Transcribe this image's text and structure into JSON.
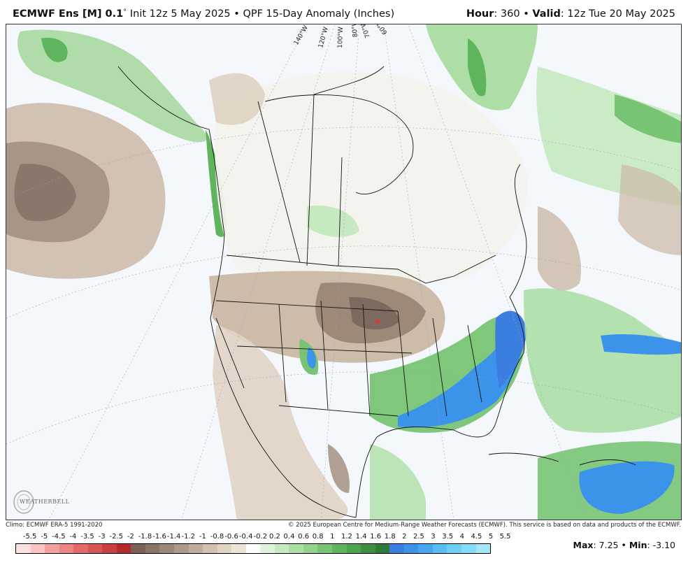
{
  "header": {
    "model": "ECMWF Ens [M] 0.1",
    "degree": "°",
    "init": "Init 12z 5 May 2025",
    "separator": "•",
    "product": "QPF 15-Day Anomaly (Inches)",
    "hour_label": "Hour",
    "hour_value": ": 360",
    "valid_label": "Valid",
    "valid_value": ": 12z Tue 20 May 2025"
  },
  "map": {
    "lon_labels": [
      "140°W",
      "120°W",
      "100°W",
      "80°W",
      "70°W",
      "60°W"
    ]
  },
  "logo": {
    "text": "WEATHERBELL"
  },
  "footer": {
    "climo": "Climo: ECMWF ERA-5 1991-2020",
    "copyright": "© 2025 European Centre for Medium-Range Weather Forecasts (ECMWF). This service is based on data and products of the ECMWF."
  },
  "colorbar": {
    "labels": [
      "-5.5",
      "-5",
      "-4.5",
      "-4",
      "-3.5",
      "-3",
      "-2.5",
      "-2",
      "-1.8",
      "-1.6",
      "-1.4",
      "-1.2",
      "-1",
      "-0.8",
      "-0.6",
      "-0.4",
      "-0.2",
      "0.2",
      "0.4",
      "0.6",
      "0.8",
      "1",
      "1.2",
      "1.4",
      "1.6",
      "1.8",
      "2",
      "2.5",
      "3",
      "3.5",
      "4",
      "4.5",
      "5",
      "5.5"
    ],
    "colors": [
      "#fde0e0",
      "#fbc3c3",
      "#f5a0a0",
      "#ee8585",
      "#e46a6a",
      "#d85555",
      "#c94040",
      "#b52a2a",
      "#7a6258",
      "#8a7468",
      "#9c877a",
      "#ad9a8c",
      "#bfae9f",
      "#d0c1b2",
      "#e0d3c4",
      "#ede4d8",
      "#ffffff",
      "#dff2dc",
      "#c6e9c1",
      "#acdea6",
      "#92d28c",
      "#78c474",
      "#5fb45e",
      "#4ba34c",
      "#3f8f42",
      "#2f7a36",
      "#3a7fe0",
      "#3b93ea",
      "#45a8ef",
      "#58bdf2",
      "#6fcef4",
      "#86dcf6",
      "#a2e8f8"
    ]
  },
  "stats": {
    "max_label": "Max",
    "max_value": ": 7.25",
    "sep": "•",
    "min_label": "Min",
    "min_value": ": -3.10"
  }
}
